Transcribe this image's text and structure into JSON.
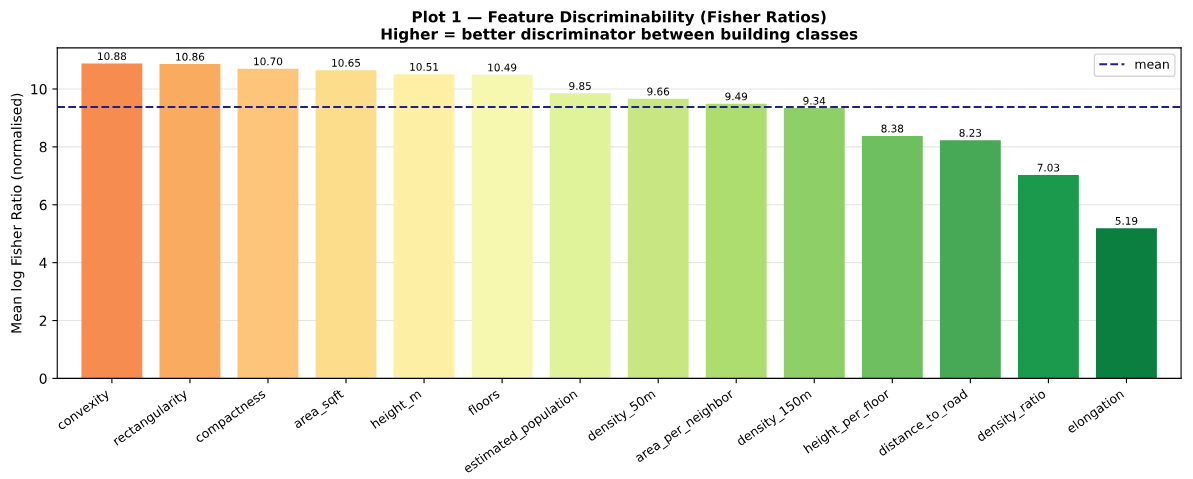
{
  "chart_data": {
    "type": "bar",
    "title": "Plot 1 — Feature Discriminability (Fisher Ratios)\nHigher = better discriminator between building classes",
    "ylabel": "Mean log Fisher Ratio (normalised)",
    "categories": [
      "convexity",
      "rectangularity",
      "compactness",
      "area_sqft",
      "height_m",
      "floors",
      "estimated_population",
      "density_50m",
      "area_per_neighbor",
      "density_150m",
      "height_per_floor",
      "distance_to_road",
      "density_ratio",
      "elongation"
    ],
    "values": [
      10.88,
      10.86,
      10.7,
      10.65,
      10.51,
      10.49,
      9.85,
      9.66,
      9.49,
      9.34,
      8.38,
      8.23,
      7.03,
      5.19
    ],
    "colors": [
      "#f68c4f",
      "#f9ab5f",
      "#fcc57a",
      "#fbdd8c",
      "#fdf0a4",
      "#f6f8b0",
      "#e0f29a",
      "#c8e782",
      "#addc6f",
      "#8fcf67",
      "#6dbf5f",
      "#47a955",
      "#1b9a4d",
      "#0a7f40"
    ],
    "value_labels": [
      "10.88",
      "10.86",
      "10.70",
      "10.65",
      "10.51",
      "10.49",
      "9.85",
      "9.66",
      "9.49",
      "9.34",
      "8.38",
      "8.23",
      "7.03",
      "5.19"
    ],
    "ylim": [
      0,
      11.42
    ],
    "yticks": [
      0,
      2,
      4,
      6,
      8,
      10
    ],
    "ref_lines": [
      {
        "axis": "y",
        "value": 9.38,
        "label": "mean",
        "color": "#1f1f8f",
        "line_style": "dashed"
      }
    ],
    "grid": "y",
    "legend": "top right"
  }
}
